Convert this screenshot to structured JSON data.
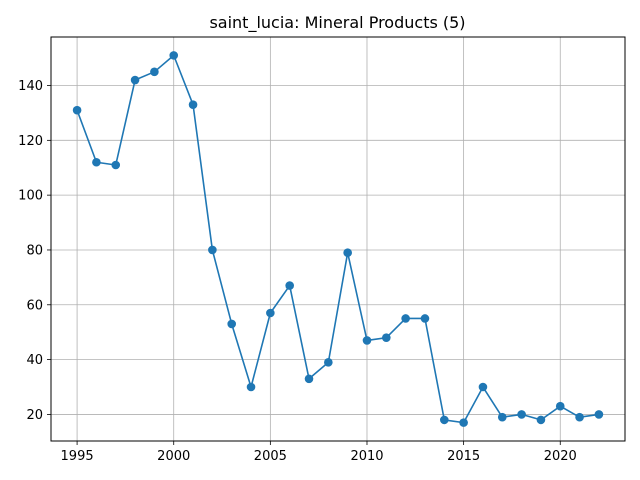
{
  "chart_data": {
    "type": "line",
    "title": "saint_lucia: Mineral Products (5)",
    "xlabel": "",
    "ylabel": "",
    "x": [
      1995,
      1996,
      1997,
      1998,
      1999,
      2000,
      2001,
      2002,
      2003,
      2004,
      2005,
      2006,
      2007,
      2008,
      2009,
      2010,
      2011,
      2012,
      2013,
      2014,
      2015,
      2016,
      2017,
      2018,
      2019,
      2020,
      2021,
      2022
    ],
    "series": [
      {
        "values": [
          131,
          112,
          111,
          142,
          145,
          151,
          133,
          80,
          53,
          30,
          57,
          67,
          33,
          39,
          79,
          47,
          48,
          55,
          55,
          18,
          17,
          30,
          19,
          20,
          18,
          23,
          19,
          20
        ],
        "color": "#1f77b4",
        "marker": "circle"
      }
    ],
    "xlim": [
      1993.65,
      1995,
      2023.35
    ],
    "xticks": [
      1995,
      2000,
      2005,
      2010,
      2015,
      2020
    ],
    "ylim": [
      10.3,
      157.7
    ],
    "yticks": [
      20,
      40,
      60,
      80,
      100,
      120,
      140
    ],
    "grid": true,
    "legend": "none"
  }
}
